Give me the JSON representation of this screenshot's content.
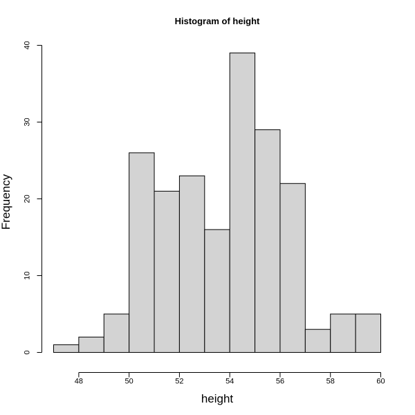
{
  "chart_data": {
    "type": "bar",
    "title": "Histogram of height",
    "xlabel": "height",
    "ylabel": "Frequency",
    "bins": [
      {
        "from": 47,
        "to": 48,
        "count": 1
      },
      {
        "from": 48,
        "to": 49,
        "count": 2
      },
      {
        "from": 49,
        "to": 50,
        "count": 5
      },
      {
        "from": 50,
        "to": 51,
        "count": 26
      },
      {
        "from": 51,
        "to": 52,
        "count": 21
      },
      {
        "from": 52,
        "to": 53,
        "count": 23
      },
      {
        "from": 53,
        "to": 54,
        "count": 16
      },
      {
        "from": 54,
        "to": 55,
        "count": 39
      },
      {
        "from": 55,
        "to": 56,
        "count": 29
      },
      {
        "from": 56,
        "to": 57,
        "count": 22
      },
      {
        "from": 57,
        "to": 58,
        "count": 3
      },
      {
        "from": 58,
        "to": 59,
        "count": 5
      },
      {
        "from": 59,
        "to": 60,
        "count": 5
      }
    ],
    "xlim": [
      47,
      60
    ],
    "ylim": [
      0,
      40
    ],
    "x_ticks": [
      "48",
      "50",
      "52",
      "54",
      "56",
      "58",
      "60"
    ],
    "y_ticks": [
      "0",
      "10",
      "20",
      "30",
      "40"
    ],
    "bar_color": "#d3d3d3",
    "grid": false
  }
}
